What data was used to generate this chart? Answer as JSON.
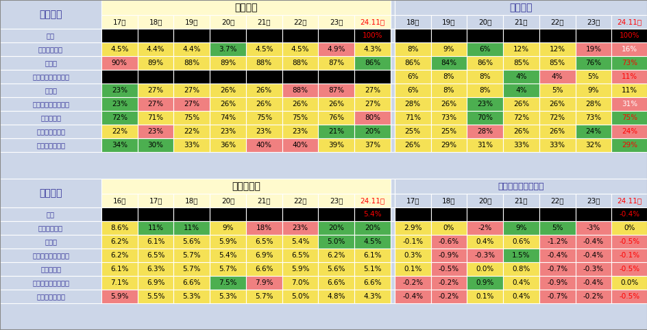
{
  "bg_color": "#ccd6e8",
  "top_table": {
    "left_label": "工业企业",
    "section1_title": "收入结构",
    "section2_title": "效益结构",
    "years1": [
      "17年",
      "18年",
      "19年",
      "20年",
      "21年",
      "22年",
      "23年",
      "24.11累"
    ],
    "years2": [
      "18年",
      "19年",
      "20年",
      "21年",
      "22年",
      "23年",
      "24.11累"
    ],
    "row_labels": [
      "总计",
      "其中：采矿业",
      "制造业",
      "气及水生产和供应业",
      "水电气",
      "其中：国有控股企业",
      "股份制企业",
      "外商及三资企业",
      "其中：私营企业"
    ],
    "data1": [
      [
        "",
        "",
        "",
        "",
        "",
        "",
        "",
        "100%"
      ],
      [
        "4.5%",
        "4.4%",
        "4.4%",
        "3.7%",
        "4.5%",
        "4.5%",
        "4.9%",
        "4.3%"
      ],
      [
        "90%",
        "89%",
        "88%",
        "89%",
        "88%",
        "88%",
        "87%",
        "86%"
      ],
      [
        "",
        "",
        "",
        "",
        "",
        "",
        "",
        ""
      ],
      [
        "23%",
        "27%",
        "27%",
        "26%",
        "26%",
        "88%",
        "87%",
        "27%"
      ],
      [
        "23%",
        "27%",
        "27%",
        "26%",
        "26%",
        "26%",
        "26%",
        "27%"
      ],
      [
        "72%",
        "71%",
        "75%",
        "74%",
        "75%",
        "75%",
        "76%",
        "80%"
      ],
      [
        "22%",
        "23%",
        "22%",
        "23%",
        "23%",
        "23%",
        "21%",
        "20%"
      ],
      [
        "34%",
        "30%",
        "33%",
        "36%",
        "40%",
        "40%",
        "39%",
        "37%"
      ]
    ],
    "data2": [
      [
        "",
        "",
        "",
        "",
        "",
        "",
        "100%"
      ],
      [
        "8%",
        "9%",
        "6%",
        "12%",
        "12%",
        "19%",
        "16%"
      ],
      [
        "86%",
        "84%",
        "86%",
        "85%",
        "85%",
        "76%",
        "73%"
      ],
      [
        "6%",
        "8%",
        "8%",
        "4%",
        "4%",
        "5%",
        "11%"
      ],
      [
        "6%",
        "8%",
        "8%",
        "4%",
        "5%",
        "9%",
        "11%"
      ],
      [
        "28%",
        "26%",
        "23%",
        "26%",
        "26%",
        "28%",
        "31%"
      ],
      [
        "71%",
        "73%",
        "70%",
        "72%",
        "72%",
        "73%",
        "75%"
      ],
      [
        "25%",
        "25%",
        "28%",
        "26%",
        "26%",
        "24%",
        "24%"
      ],
      [
        "26%",
        "29%",
        "31%",
        "33%",
        "33%",
        "32%",
        "29%"
      ]
    ],
    "colors1": [
      [
        "K",
        "K",
        "K",
        "K",
        "K",
        "K",
        "K",
        "K"
      ],
      [
        "Y",
        "Y",
        "Y",
        "G",
        "Y",
        "Y",
        "R",
        "Y"
      ],
      [
        "R",
        "Y",
        "Y",
        "Y",
        "Y",
        "Y",
        "Y",
        "G"
      ],
      [
        "K",
        "K",
        "K",
        "K",
        "K",
        "K",
        "K",
        "K"
      ],
      [
        "G",
        "Y",
        "Y",
        "Y",
        "Y",
        "R",
        "R",
        "Y"
      ],
      [
        "G",
        "R",
        "R",
        "Y",
        "Y",
        "Y",
        "Y",
        "Y"
      ],
      [
        "G",
        "Y",
        "Y",
        "Y",
        "Y",
        "Y",
        "Y",
        "R"
      ],
      [
        "Y",
        "R",
        "Y",
        "Y",
        "Y",
        "Y",
        "G",
        "G"
      ],
      [
        "G",
        "G",
        "Y",
        "Y",
        "R",
        "R",
        "Y",
        "Y"
      ]
    ],
    "colors2": [
      [
        "K",
        "K",
        "K",
        "K",
        "K",
        "K",
        "K"
      ],
      [
        "Y",
        "Y",
        "G",
        "Y",
        "Y",
        "R",
        "RW"
      ],
      [
        "Y",
        "G",
        "Y",
        "Y",
        "Y",
        "G",
        "GR"
      ],
      [
        "Y",
        "Y",
        "Y",
        "G",
        "R",
        "Y",
        "RR"
      ],
      [
        "Y",
        "Y",
        "Y",
        "G",
        "Y",
        "Y",
        "Y"
      ],
      [
        "Y",
        "Y",
        "G",
        "Y",
        "Y",
        "Y",
        "RW"
      ],
      [
        "Y",
        "Y",
        "G",
        "Y",
        "Y",
        "Y",
        "GR"
      ],
      [
        "Y",
        "Y",
        "R",
        "Y",
        "Y",
        "G",
        "RR"
      ],
      [
        "Y",
        "Y",
        "Y",
        "Y",
        "Y",
        "Y",
        "GR"
      ]
    ]
  },
  "bottom_table": {
    "left_label": "工业企业",
    "section1_title": "营业利润率",
    "section2_title": "营业利润率环比变化",
    "years1": [
      "16年",
      "17年",
      "18年",
      "20年",
      "21年",
      "22年",
      "23年",
      "24.11累"
    ],
    "years2": [
      "17年",
      "18年",
      "20年",
      "21年",
      "22年",
      "23年",
      "24.11累"
    ],
    "row_labels": [
      "总计",
      "其中：采矿业",
      "制造业",
      "其中：国有控股企业",
      "股份制企业",
      "及港澳台商投资企业",
      "其中：私营企业"
    ],
    "data1": [
      [
        "",
        "",
        "",
        "",
        "",
        "",
        "",
        "5.4%"
      ],
      [
        "8.6%",
        "11%",
        "11%",
        "9%",
        "18%",
        "23%",
        "20%",
        "20%"
      ],
      [
        "6.2%",
        "6.1%",
        "5.6%",
        "5.9%",
        "6.5%",
        "5.4%",
        "5.0%",
        "4.5%"
      ],
      [
        "6.2%",
        "6.5%",
        "5.7%",
        "5.4%",
        "6.9%",
        "6.5%",
        "6.2%",
        "6.1%"
      ],
      [
        "6.1%",
        "6.3%",
        "5.7%",
        "5.7%",
        "6.6%",
        "5.9%",
        "5.6%",
        "5.1%"
      ],
      [
        "7.1%",
        "6.9%",
        "6.6%",
        "7.5%",
        "7.9%",
        "7.0%",
        "6.6%",
        "6.6%"
      ],
      [
        "5.9%",
        "5.5%",
        "5.3%",
        "5.3%",
        "5.7%",
        "5.0%",
        "4.8%",
        "4.3%"
      ]
    ],
    "data2": [
      [
        "",
        "",
        "",
        "",
        "",
        "",
        "-0.4%"
      ],
      [
        "2.9%",
        "0%",
        "-2%",
        "9%",
        "5%",
        "-3%",
        "0%"
      ],
      [
        "-0.1%",
        "-0.6%",
        "0.4%",
        "0.6%",
        "-1.2%",
        "-0.4%",
        "-0.5%"
      ],
      [
        "0.3%",
        "-0.9%",
        "-0.3%",
        "1.5%",
        "-0.4%",
        "-0.4%",
        "-0.1%"
      ],
      [
        "0.1%",
        "-0.5%",
        "0.0%",
        "0.8%",
        "-0.7%",
        "-0.3%",
        "-0.5%"
      ],
      [
        "-0.2%",
        "-0.2%",
        "0.9%",
        "0.4%",
        "-0.9%",
        "-0.4%",
        "0.0%"
      ],
      [
        "-0.4%",
        "-0.2%",
        "0.1%",
        "0.4%",
        "-0.7%",
        "-0.2%",
        "-0.5%"
      ]
    ],
    "colors1": [
      [
        "K",
        "K",
        "K",
        "K",
        "K",
        "K",
        "K",
        "KR"
      ],
      [
        "Y",
        "G",
        "G",
        "Y",
        "R",
        "R",
        "G",
        "G"
      ],
      [
        "Y",
        "Y",
        "Y",
        "Y",
        "Y",
        "Y",
        "G",
        "G"
      ],
      [
        "Y",
        "Y",
        "Y",
        "Y",
        "Y",
        "Y",
        "Y",
        "Y"
      ],
      [
        "Y",
        "Y",
        "Y",
        "Y",
        "Y",
        "Y",
        "Y",
        "Y"
      ],
      [
        "Y",
        "Y",
        "Y",
        "G",
        "R",
        "Y",
        "Y",
        "Y"
      ],
      [
        "R",
        "Y",
        "Y",
        "Y",
        "Y",
        "Y",
        "Y",
        "Y"
      ]
    ],
    "colors2": [
      [
        "K",
        "K",
        "K",
        "K",
        "K",
        "K",
        "KR"
      ],
      [
        "Y",
        "Y",
        "R",
        "G",
        "G",
        "R",
        "Y"
      ],
      [
        "Y",
        "R",
        "Y",
        "Y",
        "R",
        "R",
        "RR"
      ],
      [
        "Y",
        "R",
        "R",
        "G",
        "R",
        "R",
        "RR"
      ],
      [
        "Y",
        "R",
        "Y",
        "Y",
        "R",
        "R",
        "RR"
      ],
      [
        "R",
        "R",
        "G",
        "Y",
        "R",
        "R",
        "Y"
      ],
      [
        "R",
        "R",
        "Y",
        "Y",
        "R",
        "R",
        "RR"
      ]
    ]
  }
}
